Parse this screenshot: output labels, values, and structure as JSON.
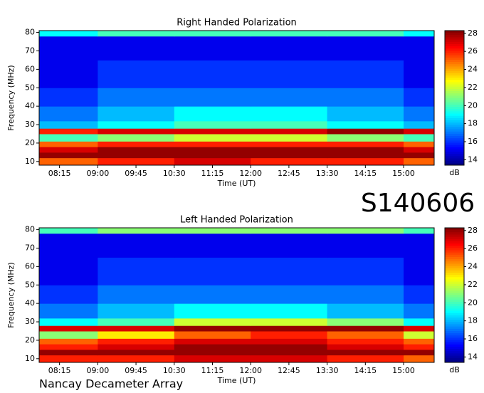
{
  "chart_data": [
    {
      "type": "heatmap",
      "title": "Right Handed Polarization",
      "xlabel": "Time (UT)",
      "ylabel": "Frequency (MHz)",
      "colorbar_label": "dB",
      "colormap": "jet",
      "xlim": [
        7.85,
        15.6
      ],
      "ylim": [
        8,
        81
      ],
      "clim": [
        13.4,
        28.3
      ],
      "xticks": [
        {
          "value": 8.25,
          "label": "08:15"
        },
        {
          "value": 9,
          "label": "09:00"
        },
        {
          "value": 9.75,
          "label": "09:45"
        },
        {
          "value": 10.5,
          "label": "10:30"
        },
        {
          "value": 11.25,
          "label": "11:15"
        },
        {
          "value": 12,
          "label": "12:00"
        },
        {
          "value": 12.75,
          "label": "12:45"
        },
        {
          "value": 13.5,
          "label": "13:30"
        },
        {
          "value": 14.25,
          "label": "14:15"
        },
        {
          "value": 15,
          "label": "15:00"
        }
      ],
      "yticks": [
        10,
        20,
        30,
        40,
        50,
        60,
        70,
        80
      ],
      "cticks": [
        14,
        16,
        18,
        20,
        22,
        24,
        26,
        28
      ],
      "xbins": [
        7.85,
        9,
        10.5,
        12,
        13.5,
        15,
        15.6
      ],
      "ybins": [
        8,
        12,
        15,
        18,
        21,
        25,
        28,
        32,
        40,
        50,
        65,
        78,
        81
      ],
      "z": [
        [
          25,
          26,
          27,
          26,
          26,
          25
        ],
        [
          28,
          28,
          28,
          28,
          28,
          28
        ],
        [
          27,
          28,
          28,
          28,
          28,
          27
        ],
        [
          25,
          26,
          26,
          26,
          26,
          25
        ],
        [
          20,
          21,
          22,
          22,
          21,
          20
        ],
        [
          26,
          27,
          27,
          27,
          28,
          27
        ],
        [
          18,
          19,
          20,
          20,
          19,
          18
        ],
        [
          17,
          18,
          19,
          19,
          18,
          17
        ],
        [
          16,
          17,
          17,
          17,
          17,
          16
        ],
        [
          15,
          16,
          16,
          16,
          16,
          15
        ],
        [
          15,
          15,
          15,
          15,
          15,
          15
        ],
        [
          19,
          20,
          20,
          20,
          20,
          19
        ]
      ]
    },
    {
      "type": "heatmap",
      "title": "Left Handed Polarization",
      "xlabel": "Time (UT)",
      "ylabel": "Frequency (MHz)",
      "colorbar_label": "dB",
      "colormap": "jet",
      "xlim": [
        7.85,
        15.6
      ],
      "ylim": [
        8,
        81
      ],
      "clim": [
        13.4,
        28.3
      ],
      "xticks": [
        {
          "value": 8.25,
          "label": "08:15"
        },
        {
          "value": 9,
          "label": "09:00"
        },
        {
          "value": 9.75,
          "label": "09:45"
        },
        {
          "value": 10.5,
          "label": "10:30"
        },
        {
          "value": 11.25,
          "label": "11:15"
        },
        {
          "value": 12,
          "label": "12:00"
        },
        {
          "value": 12.75,
          "label": "12:45"
        },
        {
          "value": 13.5,
          "label": "13:30"
        },
        {
          "value": 14.25,
          "label": "14:15"
        },
        {
          "value": 15,
          "label": "15:00"
        }
      ],
      "yticks": [
        10,
        20,
        30,
        40,
        50,
        60,
        70,
        80
      ],
      "cticks": [
        14,
        16,
        18,
        20,
        22,
        24,
        26,
        28
      ],
      "xbins": [
        7.85,
        9,
        10.5,
        12,
        13.5,
        15,
        15.6
      ],
      "ybins": [
        8,
        12,
        15,
        18,
        21,
        25,
        28,
        32,
        40,
        50,
        65,
        78,
        81
      ],
      "z": [
        [
          26,
          26,
          27,
          27,
          26,
          25
        ],
        [
          28,
          28,
          28,
          28,
          28,
          28
        ],
        [
          26,
          27,
          28,
          28,
          27,
          26
        ],
        [
          25,
          26,
          27,
          27,
          26,
          25
        ],
        [
          21,
          23,
          25,
          26,
          25,
          22
        ],
        [
          27,
          27,
          28,
          28,
          28,
          27
        ],
        [
          19,
          20,
          22,
          22,
          21,
          19
        ],
        [
          17,
          18,
          19,
          19,
          18,
          17
        ],
        [
          16,
          17,
          17,
          17,
          17,
          16
        ],
        [
          15,
          16,
          16,
          16,
          16,
          15
        ],
        [
          15,
          15,
          15,
          15,
          15,
          15
        ],
        [
          20,
          21,
          21,
          21,
          21,
          20
        ]
      ]
    }
  ],
  "id_label": "S140606",
  "footer": "Nancay Decameter Array"
}
